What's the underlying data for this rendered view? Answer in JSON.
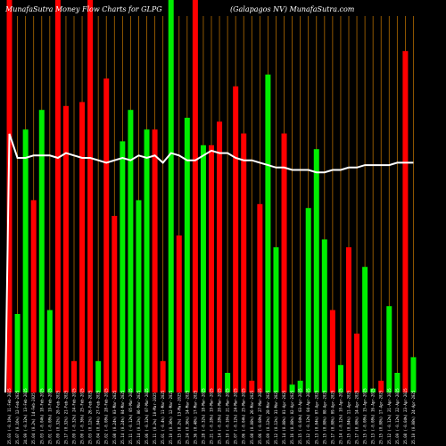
{
  "header": {
    "title_left": "MunafaSutra  Money Flow  Charts for GLPG",
    "title_right": "(Galapagos NV) MunafaSutra.com"
  },
  "colors": {
    "background": "#000000",
    "up": "#00ee00",
    "down": "#ff0000",
    "grid": "#b06a00",
    "line": "#ffffff",
    "label": "#ffffff"
  },
  "chart_data": {
    "type": "bar",
    "title": "MunafaSutra  Money Flow  Charts for GLPG",
    "subtitle": "(Galapagos NV) MunafaSutra.com",
    "ylim": [
      0,
      100
    ],
    "categories": [
      "25.03 (-0.16%) 11-Feb-2025",
      "25.07 (0.16%) 12-Feb-2025",
      "24.99 (-0.32%) 13-Feb-2025",
      "25.04 (0.2%) 14-Feb-2025",
      "25.03 (-0.04%) 18-Feb-2025",
      "25.01 (-0.08%) 19-Feb-2025",
      "25.09 (0.32%) 20-Feb-2025",
      "25.17 (0.32%) 21-Feb-2025",
      "25.09 (-0.32%) 24-Feb-2025",
      "25.00 (-0.36%) 25-Feb-2025",
      "25.03 (0.12%) 26-Feb-2025",
      "25.04 (0.04%) 27-Feb-2025",
      "25.02 (-0.08%) 28-Feb-2025",
      "25.08 (0.24%) 03-Mar-2025",
      "25.14 (0.24%) 04-Mar-2025",
      "25.11 (-0.12%) 05-Mar-2025",
      "25.14 (0.12%) 06-Mar-2025",
      "25.06 (-0.32%) 07-Mar-2025",
      "25.11 (0.2%) 10-Mar-2025",
      "25.01 (-0.4%) 11-Mar-2025",
      "25.10 (0.36%) 12-Mar-2025",
      "25.15 (0.2%) 13-Mar-2025",
      "25.24 (0.36%) 14-Mar-2025",
      "25.36 (0.48%) 17-Mar-2025",
      "25.28 (-0.32%) 18-Mar-2025",
      "25.21 (-0.28%) 19-Mar-2025",
      "25.14 (-0.28%) 20-Mar-2025",
      "25.10 (-0.16%) 21-Mar-2025",
      "25.07 (-0.12%) 24-Mar-2025",
      "25.06 (-0.04%) 25-Mar-2025",
      "25.08 (0.08%) 26-Mar-2025",
      "25.06 (-0.08%) 27-Mar-2025",
      "25.09 (0.12%) 28-Mar-2025",
      "25.12 (0.12%) 31-Mar-2025",
      "25.14 (0.08%) 01-Apr-2025",
      "25.16 (0.08%) 02-Apr-2025",
      "25.15 (-0.04%) 03-Apr-2025",
      "25.12 (-0.12%) 04-Apr-2025",
      "25.13 (0.04%) 07-Apr-2025",
      "25.15 (0.08%) 08-Apr-2025",
      "25.17 (0.08%) 09-Apr-2025",
      "25.14 (-0.12%) 10-Apr-2025",
      "25.15 (0.04%) 11-Apr-2025",
      "25.17 (0.08%) 14-Apr-2025",
      "25.15 (-0.08%) 15-Apr-2025",
      "25.13 (-0.08%) 16-Apr-2025",
      "25.15 (0.08%) 17-Apr-2025",
      "25.12 (-0.12%) 21-Apr-2025",
      "25.09 (-0.12%) 22-Apr-2025",
      "25.08 (-0.04%) 23-Apr-2025",
      "25.10 (0.08%) 24-Apr-2025"
    ],
    "bar_colors": [
      "red",
      "green",
      "green",
      "red",
      "green",
      "green",
      "red",
      "red",
      "red",
      "red",
      "red",
      "green",
      "red",
      "red",
      "green",
      "green",
      "green",
      "green",
      "red",
      "red",
      "green",
      "red",
      "green",
      "red",
      "green",
      "red",
      "red",
      "green",
      "red",
      "red",
      "red",
      "red",
      "green",
      "green",
      "red",
      "green",
      "green",
      "green",
      "green",
      "green",
      "red",
      "green",
      "red",
      "red",
      "green",
      "green",
      "red",
      "green",
      "green",
      "red",
      "green"
    ],
    "values": [
      100,
      20,
      67,
      49,
      72,
      21,
      100,
      73,
      8,
      74,
      100,
      8,
      80,
      45,
      64,
      72,
      49,
      67,
      67,
      8,
      100,
      40,
      70,
      100,
      63,
      63,
      69,
      5,
      78,
      66,
      3,
      48,
      81,
      37,
      66,
      2,
      3,
      47,
      62,
      39,
      21,
      7,
      37,
      15,
      32,
      1,
      3,
      22,
      5,
      87,
      9
    ],
    "line": [
      100,
      90,
      90,
      91,
      91,
      91,
      90,
      92,
      91,
      90,
      90,
      89,
      88,
      89,
      90,
      89,
      91,
      90,
      91,
      88,
      92,
      91,
      89,
      89,
      91,
      93,
      92,
      92,
      90,
      89,
      89,
      88,
      87,
      86,
      86,
      85,
      85,
      85,
      84,
      84,
      85,
      85,
      86,
      86,
      87,
      87,
      87,
      87,
      88,
      88,
      88
    ],
    "xlabel": "",
    "ylabel": ""
  }
}
